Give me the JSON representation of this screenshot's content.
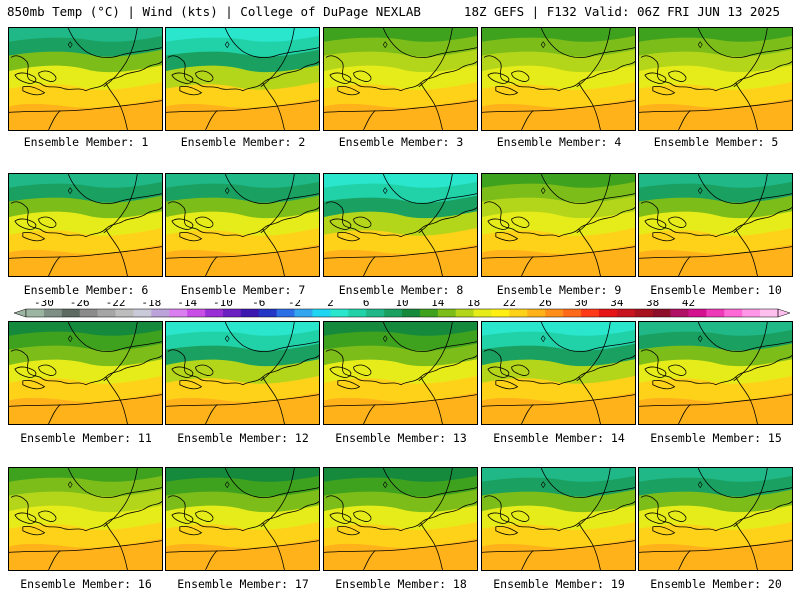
{
  "header": {
    "title_left": "850mb Temp (°C) | Wind (kts) | College of DuPage NEXLAB",
    "title_right": "18Z GEFS | F132 Valid: 06Z FRI JUN 13 2025"
  },
  "colorbar": {
    "labels": [
      "-30",
      "-26",
      "-22",
      "-18",
      "-14",
      "-10",
      "-6",
      "-2",
      "2",
      "6",
      "10",
      "14",
      "18",
      "22",
      "26",
      "30",
      "34",
      "38",
      "42"
    ],
    "colors": [
      "#9cb5a2",
      "#7d8f86",
      "#5d6b64",
      "#8b8b8b",
      "#a5a5a5",
      "#bdbdbd",
      "#c9c9d9",
      "#bca3d9",
      "#d97ff0",
      "#c84de6",
      "#9b2fd6",
      "#6b20c2",
      "#3d18b0",
      "#2436c6",
      "#2c6ee6",
      "#33a6f0",
      "#1fd6f2",
      "#29e6cc",
      "#21d1a8",
      "#20b887",
      "#1aa060",
      "#168a3c",
      "#3fa21e",
      "#7cbd1a",
      "#b4d61a",
      "#e6ec1a",
      "#ffef14",
      "#ffd21a",
      "#ffb21a",
      "#ff8f1a",
      "#ff6a1a",
      "#ff3a1a",
      "#e61414",
      "#c8141e",
      "#a8121e",
      "#8e0f2a",
      "#b00f66",
      "#d4128f",
      "#ee3ab8",
      "#ff69d6",
      "#ff96e6",
      "#ffc0f0"
    ]
  },
  "panels": [
    {
      "label": "Ensemble Member: 1",
      "scheme": 1
    },
    {
      "label": "Ensemble Member: 2",
      "scheme": 3
    },
    {
      "label": "Ensemble Member: 3",
      "scheme": 0
    },
    {
      "label": "Ensemble Member: 4",
      "scheme": 0
    },
    {
      "label": "Ensemble Member: 5",
      "scheme": 0
    },
    {
      "label": "Ensemble Member: 6",
      "scheme": 1
    },
    {
      "label": "Ensemble Member: 7",
      "scheme": 1
    },
    {
      "label": "Ensemble Member: 8",
      "scheme": 3
    },
    {
      "label": "Ensemble Member: 9",
      "scheme": 0
    },
    {
      "label": "Ensemble Member: 10",
      "scheme": 1
    },
    {
      "label": "Ensemble Member: 11",
      "scheme": 2
    },
    {
      "label": "Ensemble Member: 12",
      "scheme": 3
    },
    {
      "label": "Ensemble Member: 13",
      "scheme": 2
    },
    {
      "label": "Ensemble Member: 14",
      "scheme": 3
    },
    {
      "label": "Ensemble Member: 15",
      "scheme": 1
    },
    {
      "label": "Ensemble Member: 16",
      "scheme": 0
    },
    {
      "label": "Ensemble Member: 17",
      "scheme": 2
    },
    {
      "label": "Ensemble Member: 18",
      "scheme": 2
    },
    {
      "label": "Ensemble Member: 19",
      "scheme": 1
    },
    {
      "label": "Ensemble Member: 20",
      "scheme": 1
    }
  ],
  "schemes": [
    [
      "#3fa21e",
      "#7cbd1a",
      "#b4d61a",
      "#e6ec1a",
      "#ffd21a",
      "#ffb21a"
    ],
    [
      "#20b887",
      "#1aa060",
      "#7cbd1a",
      "#e6ec1a",
      "#ffd21a",
      "#ffb21a"
    ],
    [
      "#168a3c",
      "#3fa21e",
      "#7cbd1a",
      "#e6ec1a",
      "#ffd21a",
      "#ffb21a"
    ],
    [
      "#29e6cc",
      "#21d1a8",
      "#1aa060",
      "#b4d61a",
      "#ffd21a",
      "#ffb21a"
    ]
  ]
}
